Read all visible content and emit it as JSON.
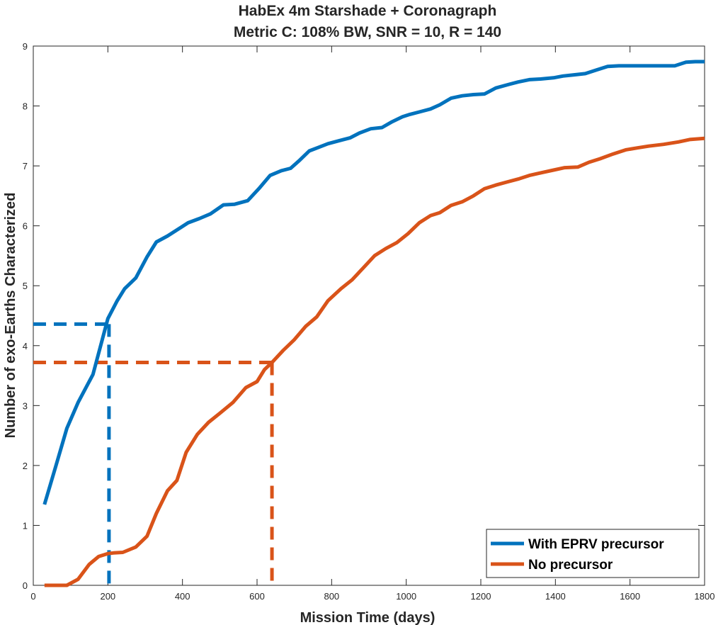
{
  "chart_data": {
    "type": "line",
    "title": "HabEx 4m Starshade + Coronagraph",
    "subtitle": "Metric C: 108% BW, SNR = 10, R = 140",
    "xlabel": "Mission Time (days)",
    "ylabel": "Number of exo-Earths Characterized",
    "xlim": [
      0,
      1800
    ],
    "ylim": [
      0,
      9
    ],
    "xticks": [
      0,
      200,
      400,
      600,
      800,
      1000,
      1200,
      1400,
      1600,
      1800
    ],
    "yticks": [
      0,
      1,
      2,
      3,
      4,
      5,
      6,
      7,
      8,
      9
    ],
    "grid": false,
    "legend_position": "bottom-right",
    "series": [
      {
        "name": "With EPRV precursor",
        "color": "#0072BD",
        "x": [
          30,
          60,
          90,
          120,
          160,
          185,
          200,
          225,
          245,
          275,
          305,
          330,
          360,
          390,
          415,
          445,
          475,
          510,
          540,
          575,
          605,
          635,
          665,
          690,
          715,
          740,
          765,
          790,
          820,
          850,
          875,
          905,
          935,
          960,
          990,
          1010,
          1035,
          1065,
          1090,
          1120,
          1150,
          1180,
          1210,
          1240,
          1275,
          1300,
          1330,
          1360,
          1395,
          1420,
          1450,
          1480,
          1510,
          1540,
          1570,
          1600,
          1640,
          1680,
          1720,
          1750,
          1775,
          1800
        ],
        "y": [
          1.35,
          1.98,
          2.62,
          3.05,
          3.52,
          4.1,
          4.45,
          4.75,
          4.95,
          5.13,
          5.48,
          5.73,
          5.83,
          5.95,
          6.05,
          6.12,
          6.2,
          6.35,
          6.36,
          6.42,
          6.62,
          6.84,
          6.92,
          6.96,
          7.1,
          7.25,
          7.31,
          7.37,
          7.42,
          7.47,
          7.55,
          7.62,
          7.64,
          7.73,
          7.82,
          7.86,
          7.9,
          7.95,
          8.02,
          8.13,
          8.17,
          8.19,
          8.2,
          8.3,
          8.36,
          8.4,
          8.44,
          8.45,
          8.47,
          8.5,
          8.52,
          8.54,
          8.6,
          8.66,
          8.67,
          8.67,
          8.67,
          8.67,
          8.67,
          8.73,
          8.74,
          8.74
        ]
      },
      {
        "name": "No precursor",
        "color": "#D95319",
        "x": [
          30,
          60,
          90,
          120,
          150,
          175,
          200,
          215,
          240,
          275,
          305,
          330,
          360,
          385,
          410,
          440,
          470,
          500,
          535,
          570,
          600,
          620,
          640,
          670,
          700,
          730,
          760,
          790,
          825,
          855,
          885,
          915,
          945,
          975,
          1005,
          1035,
          1065,
          1090,
          1120,
          1150,
          1180,
          1210,
          1240,
          1270,
          1300,
          1330,
          1365,
          1395,
          1425,
          1460,
          1490,
          1520,
          1555,
          1590,
          1620,
          1650,
          1690,
          1730,
          1760,
          1800
        ],
        "y": [
          0.0,
          0.0,
          0.0,
          0.1,
          0.35,
          0.48,
          0.53,
          0.54,
          0.55,
          0.64,
          0.82,
          1.2,
          1.58,
          1.75,
          2.22,
          2.52,
          2.72,
          2.87,
          3.05,
          3.3,
          3.4,
          3.6,
          3.72,
          3.92,
          4.1,
          4.32,
          4.48,
          4.75,
          4.95,
          5.1,
          5.3,
          5.5,
          5.62,
          5.72,
          5.87,
          6.05,
          6.17,
          6.22,
          6.34,
          6.4,
          6.5,
          6.62,
          6.68,
          6.73,
          6.78,
          6.84,
          6.89,
          6.93,
          6.97,
          6.98,
          7.06,
          7.12,
          7.2,
          7.27,
          7.3,
          7.33,
          7.36,
          7.4,
          7.44,
          7.46
        ]
      }
    ],
    "reference_lines": [
      {
        "series": "With EPRV precursor",
        "color": "#0072BD",
        "x": 203,
        "y": 4.36
      },
      {
        "series": "No precursor",
        "color": "#D95319",
        "x": 640,
        "y": 3.72
      }
    ]
  }
}
